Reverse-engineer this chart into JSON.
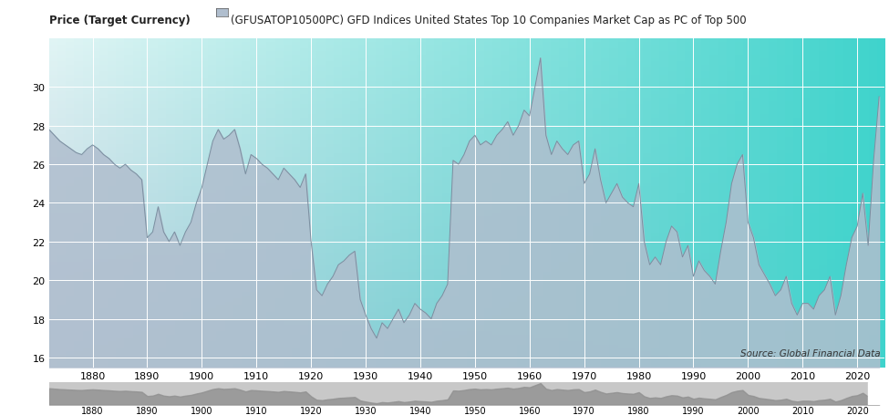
{
  "header_left": "Price (Target Currency)",
  "header_right": "(GFUSATOP10500PC) GFD Indices United States Top 10 Companies Market Cap as PC of Top 500",
  "source_text": "Source: Global Financial Data",
  "ylim": [
    15.5,
    32.5
  ],
  "xlim": [
    1872,
    2025
  ],
  "yticks": [
    16,
    18,
    20,
    22,
    24,
    26,
    28,
    30
  ],
  "xticks": [
    1880,
    1890,
    1900,
    1910,
    1920,
    1930,
    1940,
    1950,
    1960,
    1970,
    1980,
    1990,
    2000,
    2010,
    2020
  ],
  "fill_color": "#b0bece",
  "line_color": "#7a8fa0",
  "grid_color": "#ffffff",
  "bg_top_left": "#d8f0f0",
  "bg_top_right": "#40d4c8",
  "bg_bottom_left": "#b8ccd8",
  "bg_bottom_right": "#40d4c8",
  "years": [
    1872,
    1873,
    1874,
    1875,
    1876,
    1877,
    1878,
    1879,
    1880,
    1881,
    1882,
    1883,
    1884,
    1885,
    1886,
    1887,
    1888,
    1889,
    1890,
    1891,
    1892,
    1893,
    1894,
    1895,
    1896,
    1897,
    1898,
    1899,
    1900,
    1901,
    1902,
    1903,
    1904,
    1905,
    1906,
    1907,
    1908,
    1909,
    1910,
    1911,
    1912,
    1913,
    1914,
    1915,
    1916,
    1917,
    1918,
    1919,
    1920,
    1921,
    1922,
    1923,
    1924,
    1925,
    1926,
    1927,
    1928,
    1929,
    1930,
    1931,
    1932,
    1933,
    1934,
    1935,
    1936,
    1937,
    1938,
    1939,
    1940,
    1941,
    1942,
    1943,
    1944,
    1945,
    1946,
    1947,
    1948,
    1949,
    1950,
    1951,
    1952,
    1953,
    1954,
    1955,
    1956,
    1957,
    1958,
    1959,
    1960,
    1961,
    1962,
    1963,
    1964,
    1965,
    1966,
    1967,
    1968,
    1969,
    1970,
    1971,
    1972,
    1973,
    1974,
    1975,
    1976,
    1977,
    1978,
    1979,
    1980,
    1981,
    1982,
    1983,
    1984,
    1985,
    1986,
    1987,
    1988,
    1989,
    1990,
    1991,
    1992,
    1993,
    1994,
    1995,
    1996,
    1997,
    1998,
    1999,
    2000,
    2001,
    2002,
    2003,
    2004,
    2005,
    2006,
    2007,
    2008,
    2009,
    2010,
    2011,
    2012,
    2013,
    2014,
    2015,
    2016,
    2017,
    2018,
    2019,
    2020,
    2021,
    2022,
    2023,
    2024
  ],
  "values": [
    27.8,
    27.5,
    27.2,
    27.0,
    26.8,
    26.6,
    26.5,
    26.8,
    27.0,
    26.8,
    26.5,
    26.3,
    26.0,
    25.8,
    26.0,
    25.7,
    25.5,
    25.2,
    22.2,
    22.5,
    23.8,
    22.5,
    22.0,
    22.5,
    21.8,
    22.5,
    23.0,
    24.0,
    24.8,
    26.0,
    27.2,
    27.8,
    27.3,
    27.5,
    27.8,
    26.8,
    25.5,
    26.5,
    26.3,
    26.0,
    25.8,
    25.5,
    25.2,
    25.8,
    25.5,
    25.2,
    24.8,
    25.5,
    22.0,
    19.5,
    19.2,
    19.8,
    20.2,
    20.8,
    21.0,
    21.3,
    21.5,
    19.0,
    18.2,
    17.5,
    17.0,
    17.8,
    17.5,
    18.0,
    18.5,
    17.8,
    18.2,
    18.8,
    18.5,
    18.3,
    18.0,
    18.8,
    19.2,
    19.8,
    26.2,
    26.0,
    26.5,
    27.2,
    27.5,
    27.0,
    27.2,
    27.0,
    27.5,
    27.8,
    28.2,
    27.5,
    28.0,
    28.8,
    28.5,
    30.0,
    31.5,
    27.5,
    26.5,
    27.2,
    26.8,
    26.5,
    27.0,
    27.2,
    25.0,
    25.5,
    26.8,
    25.2,
    24.0,
    24.5,
    25.0,
    24.3,
    24.0,
    23.8,
    25.0,
    22.0,
    20.8,
    21.2,
    20.8,
    22.0,
    22.8,
    22.5,
    21.2,
    21.8,
    20.2,
    21.0,
    20.5,
    20.2,
    19.8,
    21.5,
    23.0,
    25.0,
    26.0,
    26.5,
    23.0,
    22.2,
    20.8,
    20.3,
    19.8,
    19.2,
    19.5,
    20.2,
    18.8,
    18.2,
    18.8,
    18.8,
    18.5,
    19.2,
    19.5,
    20.2,
    18.2,
    19.2,
    20.8,
    22.2,
    22.8,
    24.5,
    21.8,
    26.2,
    29.5
  ]
}
